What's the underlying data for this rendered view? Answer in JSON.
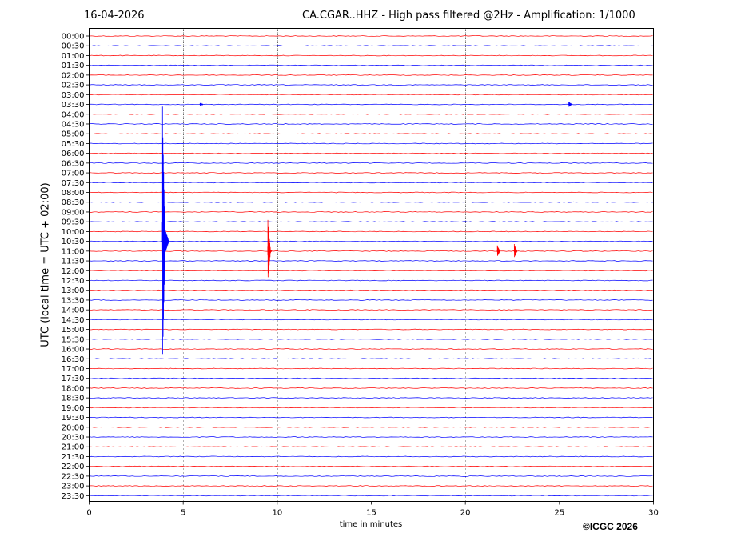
{
  "header": {
    "date": "16-04-2026",
    "title": "CA.CGAR..HHZ - High pass filtered @2Hz - Amplification: 1/1000"
  },
  "footer": {
    "copyright": "©ICGC 2026"
  },
  "chart_data": {
    "type": "line",
    "title": "CA.CGAR..HHZ - High pass filtered @2Hz - Amplification: 1/1000",
    "xlabel": "time in minutes",
    "ylabel": "UTC (local time = UTC + 02:00)",
    "xlim": [
      0,
      30
    ],
    "x_ticks": [
      0,
      5,
      10,
      15,
      20,
      25,
      30
    ],
    "x_tick_labels": [
      "0",
      "5",
      "10",
      "15",
      "20",
      "25",
      "30"
    ],
    "x_grid": true,
    "rows": [
      "00:00",
      "00:30",
      "01:00",
      "01:30",
      "02:00",
      "02:30",
      "03:00",
      "03:30",
      "04:00",
      "04:30",
      "05:00",
      "05:30",
      "06:00",
      "06:30",
      "07:00",
      "07:30",
      "08:00",
      "08:30",
      "09:00",
      "09:30",
      "10:00",
      "10:30",
      "11:00",
      "11:30",
      "12:00",
      "12:30",
      "13:00",
      "13:30",
      "14:00",
      "14:30",
      "15:00",
      "15:30",
      "16:00",
      "16:30",
      "17:00",
      "17:30",
      "18:00",
      "18:30",
      "19:00",
      "19:30",
      "20:00",
      "20:30",
      "21:00",
      "21:30",
      "22:00",
      "22:30",
      "23:00",
      "23:30"
    ],
    "row_colors": [
      "#ff0000",
      "#0000ff"
    ],
    "events": [
      {
        "row": "10:30",
        "minute": 3.9,
        "amplitude_rows": 9.5,
        "color": "#0000ff"
      },
      {
        "row": "11:00",
        "minute": 9.5,
        "amplitude_rows": 2.2,
        "color": "#ff0000"
      },
      {
        "row": "11:00",
        "minute": 21.7,
        "amplitude_rows": 0.4,
        "color": "#ff0000"
      },
      {
        "row": "11:00",
        "minute": 22.6,
        "amplitude_rows": 0.5,
        "color": "#ff0000"
      },
      {
        "row": "03:30",
        "minute": 25.5,
        "amplitude_rows": 0.2,
        "color": "#0000ff"
      },
      {
        "row": "03:30",
        "minute": 5.9,
        "amplitude_rows": 0.1,
        "color": "#0000ff"
      }
    ]
  }
}
